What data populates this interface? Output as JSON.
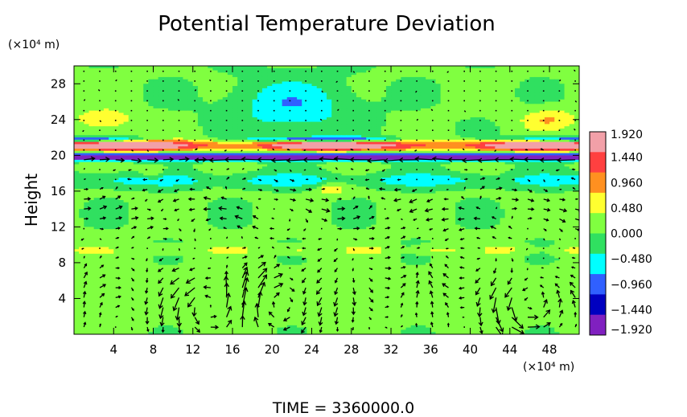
{
  "chart_data": {
    "type": "heatmap",
    "title": "Potential Temperature Deviation",
    "ylabel": "Height",
    "x_unit_label": "(×10⁴ m)",
    "y_unit_label": "(×10⁴ m)",
    "footer": "TIME  =  3360000.0",
    "xlim": [
      0,
      51
    ],
    "ylim": [
      0,
      30
    ],
    "xticks": [
      "4",
      "8",
      "12",
      "16",
      "20",
      "24",
      "28",
      "32",
      "36",
      "40",
      "44",
      "48"
    ],
    "yticks": [
      "4",
      "8",
      "12",
      "16",
      "20",
      "24",
      "28"
    ],
    "xtick_values": [
      4,
      8,
      12,
      16,
      20,
      24,
      28,
      32,
      36,
      40,
      44,
      48
    ],
    "ytick_values": [
      4,
      8,
      12,
      16,
      20,
      24,
      28
    ],
    "colorbar": {
      "labels": [
        "1.920",
        "1.440",
        "0.960",
        "0.480",
        "0.000",
        "−0.480",
        "−0.960",
        "−1.440",
        "−1.920"
      ],
      "values": [
        1.92,
        1.44,
        0.96,
        0.48,
        0.0,
        -0.48,
        -0.96,
        -1.44,
        -1.92
      ],
      "colors": [
        "#f2a0a8",
        "#ff4040",
        "#ff9020",
        "#ffff30",
        "#80ff40",
        "#30e060",
        "#00ffff",
        "#3060ff",
        "#0000c0",
        "#8020c0"
      ]
    },
    "overlay": "velocity vectors (arrows)",
    "features": {
      "background_value": 0.1,
      "warm_band_height": [
        20,
        22
      ],
      "cold_band_height": [
        19.4,
        20.2
      ],
      "surface_vortex_centers_x": [
        14,
        20,
        45
      ]
    }
  }
}
